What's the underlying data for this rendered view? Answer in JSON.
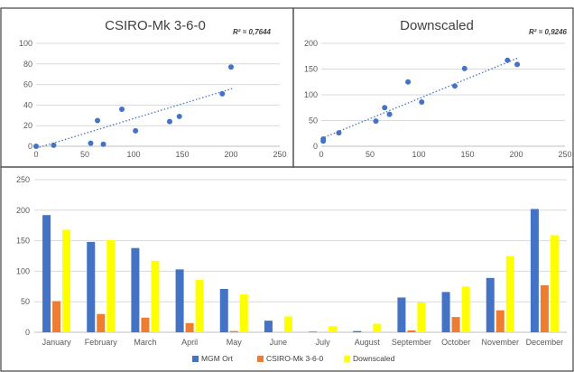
{
  "chart_data": [
    {
      "type": "scatter",
      "title": "CSIRO-Mk 3-6-0",
      "annotation": "R² = 0,7644",
      "xlim": [
        0,
        250
      ],
      "ylim": [
        0,
        100
      ],
      "xticks": [
        0,
        50,
        100,
        150,
        200,
        250
      ],
      "yticks": [
        0,
        20,
        40,
        60,
        80,
        100
      ],
      "grid": true,
      "trendline": {
        "style": "dotted",
        "x": [
          0,
          201
        ],
        "y": [
          -2,
          56
        ]
      },
      "points": [
        {
          "x": 0,
          "y": 0
        },
        {
          "x": 18,
          "y": 1
        },
        {
          "x": 56,
          "y": 3
        },
        {
          "x": 63,
          "y": 25
        },
        {
          "x": 69,
          "y": 2
        },
        {
          "x": 88,
          "y": 36
        },
        {
          "x": 102,
          "y": 15
        },
        {
          "x": 137,
          "y": 24
        },
        {
          "x": 147,
          "y": 29
        },
        {
          "x": 191,
          "y": 51
        },
        {
          "x": 200,
          "y": 77
        }
      ],
      "color": "#4472c4"
    },
    {
      "type": "scatter",
      "title": "Downscaled",
      "annotation": "R² = 0,9246",
      "xlim": [
        0,
        250
      ],
      "ylim": [
        0,
        200
      ],
      "xticks": [
        0,
        50,
        100,
        150,
        200,
        250
      ],
      "yticks": [
        0,
        50,
        100,
        150,
        200
      ],
      "grid": true,
      "trendline": {
        "style": "dotted",
        "x": [
          0,
          201
        ],
        "y": [
          15,
          171
        ]
      },
      "points": [
        {
          "x": 2,
          "y": 10
        },
        {
          "x": 2,
          "y": 14
        },
        {
          "x": 18,
          "y": 26
        },
        {
          "x": 56,
          "y": 49
        },
        {
          "x": 65,
          "y": 75
        },
        {
          "x": 70,
          "y": 62
        },
        {
          "x": 89,
          "y": 125
        },
        {
          "x": 103,
          "y": 86
        },
        {
          "x": 137,
          "y": 117
        },
        {
          "x": 147,
          "y": 151
        },
        {
          "x": 191,
          "y": 167
        },
        {
          "x": 201,
          "y": 159
        }
      ],
      "color": "#4472c4"
    },
    {
      "type": "bar",
      "ylim": [
        0,
        250
      ],
      "yticks": [
        0,
        50,
        100,
        150,
        200,
        250
      ],
      "grid": true,
      "legend_position": "bottom",
      "categories": [
        "January",
        "February",
        "March",
        "April",
        "May",
        "June",
        "July",
        "August",
        "September",
        "October",
        "November",
        "December"
      ],
      "series": [
        {
          "name": "MGM Ort",
          "color": "#4472c4",
          "values": [
            192,
            148,
            138,
            103,
            71,
            19,
            1,
            2,
            57,
            66,
            89,
            202
          ]
        },
        {
          "name": "CSIRO-Mk 3-6-0",
          "color": "#ed7d31",
          "values": [
            51,
            30,
            24,
            15,
            2,
            0,
            0,
            0,
            3,
            25,
            36,
            77
          ]
        },
        {
          "name": "Downscaled",
          "color": "#ffff00",
          "values": [
            168,
            151,
            117,
            86,
            62,
            26,
            10,
            14,
            49,
            75,
            125,
            159
          ]
        }
      ]
    }
  ]
}
